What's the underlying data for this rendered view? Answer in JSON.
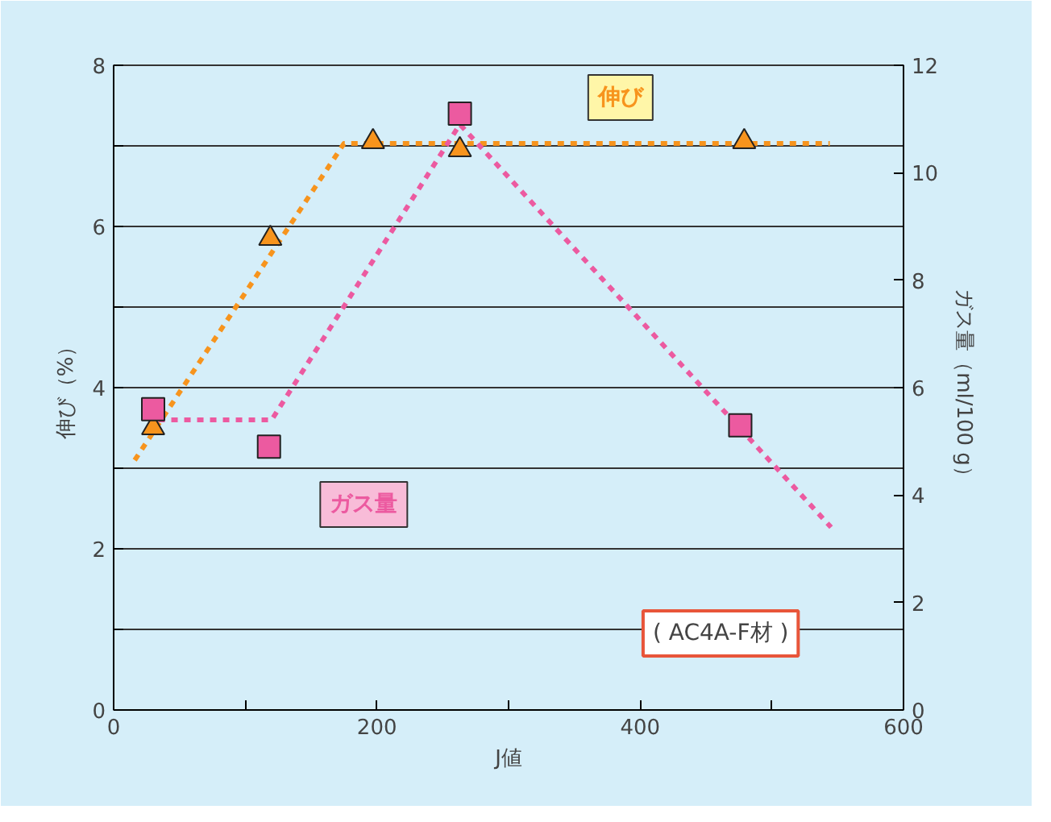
{
  "chart_data": {
    "type": "scatter",
    "xlabel": "J値",
    "ylabel": "伸び（%）",
    "y2label": "ガス量（ml/100 g）",
    "xlim": [
      0,
      600
    ],
    "xticks": [
      0,
      {
        "value": 100,
        "label": null
      },
      200,
      {
        "value": 300,
        "label": null
      },
      400,
      {
        "value": 500,
        "label": null
      },
      600
    ],
    "ylim": [
      0,
      8
    ],
    "yticks": [
      0,
      {
        "value": 1,
        "label": null
      },
      2,
      {
        "value": 3,
        "label": null
      },
      4,
      {
        "value": 5,
        "label": null
      },
      6,
      {
        "value": 7,
        "label": null
      },
      8
    ],
    "y2lim": [
      0,
      12
    ],
    "y2ticks": [
      0,
      2,
      4,
      6,
      8,
      10,
      12
    ],
    "grid": "y",
    "series": [
      {
        "name": "伸び",
        "marker": "triangle",
        "color": "#f7941d",
        "x": [
          30,
          119,
          197,
          263,
          479
        ],
        "values": [
          3.5,
          5.85,
          7.05,
          6.95,
          7.05
        ]
      },
      {
        "name": "ガス量",
        "marker": "square",
        "axis": "y2",
        "color": "#ec5aa0",
        "x": [
          30,
          118,
          263,
          476
        ],
        "values": [
          5.6,
          4.9,
          11.1,
          5.3
        ]
      },
      {
        "type": "line",
        "line_style": "dotted",
        "color": "#f7941d",
        "x": [
          16,
          175,
          544
        ],
        "values": [
          3.1,
          7.03,
          7.03
        ]
      },
      {
        "type": "line",
        "line_style": "dotted",
        "axis": "y2",
        "color": "#ec5aa0",
        "x": [
          34,
          120,
          263,
          545
        ],
        "values": [
          5.4,
          5.4,
          10.9,
          3.4
        ]
      }
    ],
    "annotations": [
      "( AC4A-F材 )"
    ]
  }
}
